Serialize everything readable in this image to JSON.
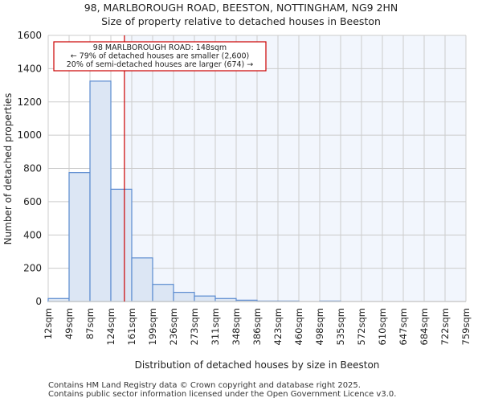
{
  "chart_data": {
    "type": "bar",
    "title": "98, MARLBOROUGH ROAD, BEESTON, NOTTINGHAM, NG9 2HN",
    "subtitle": "Size of property relative to detached houses in Beeston",
    "xlabel": "Distribution of detached houses by size in Beeston",
    "ylabel": "Number of detached properties",
    "ylim": [
      0,
      1600
    ],
    "yticks": [
      0,
      200,
      400,
      600,
      800,
      1000,
      1200,
      1400,
      1600
    ],
    "bin_edges": [
      12,
      49,
      87,
      124,
      161,
      199,
      236,
      273,
      311,
      348,
      386,
      423,
      460,
      498,
      535,
      572,
      610,
      647,
      684,
      722,
      759
    ],
    "tick_labels": [
      "12sqm",
      "49sqm",
      "87sqm",
      "124sqm",
      "161sqm",
      "199sqm",
      "236sqm",
      "273sqm",
      "311sqm",
      "348sqm",
      "386sqm",
      "423sqm",
      "460sqm",
      "498sqm",
      "535sqm",
      "572sqm",
      "610sqm",
      "647sqm",
      "684sqm",
      "722sqm",
      "759sqm"
    ],
    "values": [
      18,
      775,
      1325,
      675,
      262,
      103,
      55,
      33,
      18,
      8,
      3,
      3,
      0,
      3,
      0,
      0,
      0,
      0,
      0,
      0
    ],
    "property_value": 148,
    "annotation": [
      "98 MARLBOROUGH ROAD: 148sqm",
      "← 79% of detached houses are smaller (2,600)",
      "20% of semi-detached houses are larger (674) →"
    ],
    "grid": true,
    "colors": {
      "bar_fill": "#dce6f4",
      "bar_edge": "#5b8bd0",
      "marker": "#cc0000",
      "shade": "#f2f6fd"
    }
  },
  "footer": [
    "Contains HM Land Registry data © Crown copyright and database right 2025.",
    "Contains public sector information licensed under the Open Government Licence v3.0."
  ]
}
